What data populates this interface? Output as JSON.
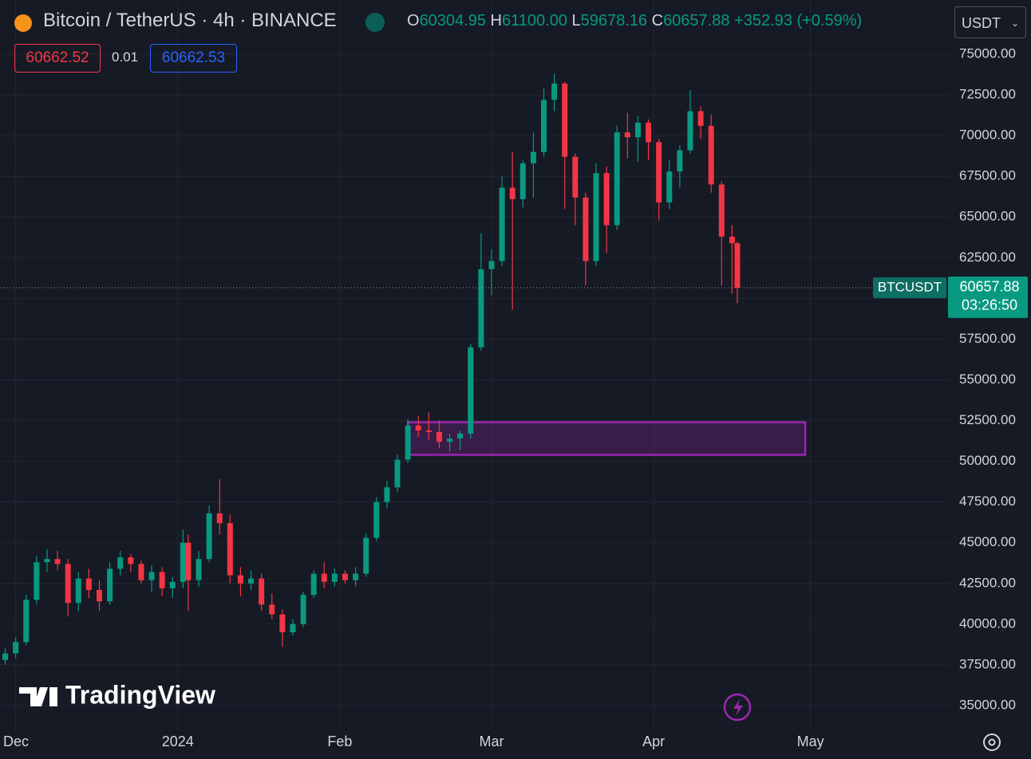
{
  "header": {
    "symbol": "Bitcoin / TetherUS · 4h · BINANCE",
    "o_label": "O",
    "open": "60304.95",
    "h_label": "H",
    "high": "61100.00",
    "l_label": "L",
    "low": "59678.16",
    "c_label": "C",
    "close": "60657.88",
    "change": "+352.93 (+0.59%)",
    "sell": "60662.52",
    "spread": "0.01",
    "buy": "60662.53",
    "currency": "USDT"
  },
  "watermark": "TradingView",
  "chart_data": {
    "type": "candlestick",
    "up_color": "#089981",
    "down_color": "#f23645",
    "grid": true,
    "x": [
      -2,
      0,
      2,
      4,
      6,
      8,
      10,
      12,
      14,
      16,
      18,
      20,
      22,
      24,
      26,
      28,
      30,
      32,
      33,
      35,
      37,
      39,
      41,
      43,
      45,
      47,
      49,
      51,
      53,
      55,
      57,
      59,
      61,
      63,
      65,
      67,
      69,
      71,
      73,
      75,
      77,
      79,
      81,
      83,
      85,
      87,
      89,
      91,
      93,
      95,
      97,
      99,
      101,
      103,
      105,
      107,
      109,
      111,
      113,
      115,
      117,
      119,
      121,
      123,
      125,
      127,
      129,
      131,
      133,
      135,
      137,
      138
    ],
    "open": [
      37800,
      38200,
      38900,
      41500,
      43800,
      44000,
      43700,
      41300,
      42800,
      42100,
      41400,
      43400,
      44100,
      43700,
      42700,
      43200,
      42200,
      42600,
      45000,
      42700,
      44000,
      46800,
      46200,
      43000,
      42500,
      42800,
      41200,
      40600,
      39500,
      40000,
      41800,
      43100,
      42600,
      43100,
      42700,
      43100,
      45300,
      47500,
      48400,
      50100,
      52200,
      51900,
      51800,
      51200,
      51400,
      51700,
      57000,
      61800,
      62300,
      66800,
      66100,
      68300,
      69000,
      72200,
      73200,
      68700,
      66200,
      62300,
      67700,
      64500,
      70200,
      69900,
      70800,
      69600,
      65900,
      67800,
      69100,
      71500,
      70600,
      67000,
      63800,
      63400
    ],
    "high": [
      38500,
      39200,
      41800,
      44200,
      44600,
      44500,
      44000,
      43200,
      43400,
      42700,
      43800,
      44500,
      44300,
      43900,
      43600,
      43500,
      42900,
      45800,
      45500,
      44500,
      47300,
      48900,
      46700,
      43500,
      43300,
      43100,
      41900,
      40900,
      40300,
      42000,
      43300,
      43800,
      43400,
      43300,
      43500,
      45600,
      47800,
      48800,
      50400,
      52600,
      52800,
      53000,
      52500,
      51700,
      51900,
      57200,
      64000,
      63000,
      67500,
      69000,
      68500,
      70200,
      72900,
      73800,
      73300,
      68900,
      66500,
      68300,
      68100,
      70600,
      71400,
      71200,
      71000,
      69800,
      68500,
      69400,
      72800,
      71800,
      71300,
      67200,
      64500,
      63500
    ],
    "low": [
      37500,
      37900,
      38700,
      41200,
      43200,
      43300,
      40500,
      40800,
      41600,
      40800,
      41200,
      43000,
      43200,
      42500,
      42000,
      41700,
      41600,
      42200,
      40800,
      42300,
      43800,
      45500,
      42500,
      41700,
      42100,
      40800,
      40300,
      38600,
      39300,
      39800,
      41600,
      42200,
      42300,
      42500,
      42300,
      42900,
      45100,
      47100,
      48100,
      49900,
      51500,
      51300,
      50800,
      50600,
      50700,
      51400,
      56800,
      60200,
      62000,
      59300,
      65600,
      66200,
      68700,
      71500,
      65500,
      64500,
      60800,
      62000,
      62800,
      64200,
      68600,
      68400,
      68500,
      64800,
      65500,
      66800,
      68900,
      69800,
      66500,
      60800,
      60300,
      59700
    ],
    "close": [
      38200,
      38900,
      41500,
      43800,
      44000,
      43700,
      41300,
      42800,
      42100,
      41400,
      43400,
      44100,
      43700,
      42700,
      43200,
      42200,
      42600,
      45000,
      42700,
      44000,
      46800,
      46200,
      43000,
      42500,
      42800,
      41200,
      40600,
      39500,
      40000,
      41800,
      43100,
      42600,
      43100,
      42700,
      43100,
      45300,
      47500,
      48400,
      50100,
      52200,
      51900,
      51800,
      51200,
      51400,
      51700,
      57000,
      61800,
      62300,
      66800,
      66100,
      68300,
      69000,
      72200,
      73200,
      68700,
      66200,
      62300,
      67700,
      64500,
      70200,
      69900,
      70800,
      69600,
      65900,
      67800,
      69100,
      71500,
      70600,
      67000,
      63800,
      63400,
      60657.88
    ],
    "xlim": [
      -3,
      178.6
    ],
    "xticks": [
      {
        "value": 0,
        "label": "Dec"
      },
      {
        "value": 31,
        "label": "2024"
      },
      {
        "value": 62,
        "label": "Feb"
      },
      {
        "value": 91,
        "label": "Mar"
      },
      {
        "value": 122,
        "label": "Apr"
      },
      {
        "value": 152,
        "label": "May"
      }
    ],
    "ylim": [
      33530,
      78330
    ],
    "yticks": [
      {
        "value": 35000,
        "label": "35000.00"
      },
      {
        "value": 37500,
        "label": "37500.00"
      },
      {
        "value": 40000,
        "label": "40000.00"
      },
      {
        "value": 42500,
        "label": "42500.00"
      },
      {
        "value": 45000,
        "label": "45000.00"
      },
      {
        "value": 47500,
        "label": "47500.00"
      },
      {
        "value": 50000,
        "label": "50000.00"
      },
      {
        "value": 52500,
        "label": "52500.00"
      },
      {
        "value": 55000,
        "label": "55000.00"
      },
      {
        "value": 57500,
        "label": "57500.00"
      },
      {
        "value": 60000,
        "label": "60000.00"
      },
      {
        "value": 62500,
        "label": "62500.00"
      },
      {
        "value": 65000,
        "label": "65000.00"
      },
      {
        "value": 67500,
        "label": "67500.00"
      },
      {
        "value": 70000,
        "label": "70000.00"
      },
      {
        "value": 72500,
        "label": "72500.00"
      },
      {
        "value": 75000,
        "label": "75000.00"
      }
    ],
    "zone": {
      "x0": 75,
      "x1": 151,
      "y0": 50400,
      "y1": 52400,
      "color": "#9c27b0"
    },
    "last_price": {
      "symbol": "BTCUSDT",
      "value": 60657.88,
      "countdown": "03:26:50",
      "color": "#089981"
    }
  }
}
